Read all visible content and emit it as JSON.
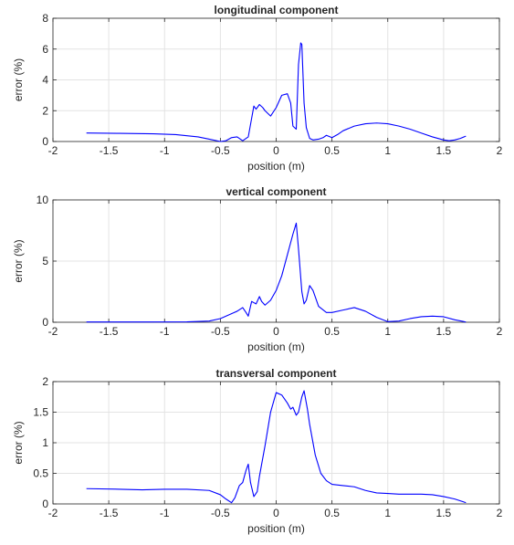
{
  "chart_data": [
    {
      "type": "line",
      "title": "longitudinal component",
      "xlabel": "position (m)",
      "ylabel": "error (%)",
      "xlim": [
        -2,
        2
      ],
      "ylim": [
        0,
        8
      ],
      "xticks": [
        -2,
        -1.5,
        -1,
        -0.5,
        0,
        0.5,
        1,
        1.5,
        2
      ],
      "xtick_labels": [
        "-2",
        "-1.5",
        "-1",
        "-0.5",
        "0",
        "0.5",
        "1",
        "1.5",
        "2"
      ],
      "yticks": [
        0,
        2,
        4,
        6,
        8
      ],
      "ytick_labels": [
        "0",
        "2",
        "4",
        "6",
        "8"
      ],
      "grid": true,
      "color": "#0000ff",
      "x": [
        -1.7,
        -1.4,
        -1.1,
        -0.9,
        -0.7,
        -0.6,
        -0.5,
        -0.45,
        -0.4,
        -0.35,
        -0.3,
        -0.25,
        -0.22,
        -0.2,
        -0.18,
        -0.15,
        -0.12,
        -0.1,
        -0.05,
        0,
        0.05,
        0.1,
        0.13,
        0.15,
        0.18,
        0.2,
        0.22,
        0.23,
        0.25,
        0.27,
        0.3,
        0.33,
        0.38,
        0.42,
        0.45,
        0.5,
        0.55,
        0.6,
        0.7,
        0.8,
        0.9,
        1.0,
        1.1,
        1.2,
        1.3,
        1.4,
        1.5,
        1.55,
        1.6,
        1.65,
        1.7
      ],
      "y": [
        0.55,
        0.53,
        0.5,
        0.45,
        0.3,
        0.15,
        0.0,
        0.05,
        0.25,
        0.3,
        0.05,
        0.3,
        1.5,
        2.3,
        2.1,
        2.4,
        2.2,
        2.0,
        1.65,
        2.2,
        3.0,
        3.1,
        2.5,
        1.0,
        0.8,
        5.0,
        6.4,
        6.3,
        2.5,
        0.9,
        0.2,
        0.1,
        0.15,
        0.25,
        0.4,
        0.25,
        0.45,
        0.7,
        1.0,
        1.15,
        1.2,
        1.15,
        1.0,
        0.8,
        0.55,
        0.3,
        0.1,
        0.05,
        0.1,
        0.2,
        0.35
      ]
    },
    {
      "type": "line",
      "title": "vertical component",
      "xlabel": "position (m)",
      "ylabel": "error (%)",
      "xlim": [
        -2,
        2
      ],
      "ylim": [
        0,
        10
      ],
      "xticks": [
        -2,
        -1.5,
        -1,
        -0.5,
        0,
        0.5,
        1,
        1.5,
        2
      ],
      "xtick_labels": [
        "-2",
        "-1.5",
        "-1",
        "-0.5",
        "0",
        "0.5",
        "1",
        "1.5",
        "2"
      ],
      "yticks": [
        0,
        5,
        10
      ],
      "ytick_labels": [
        "0",
        "5",
        "10"
      ],
      "grid": true,
      "color": "#0000ff",
      "x": [
        -1.7,
        -1.2,
        -0.8,
        -0.6,
        -0.5,
        -0.4,
        -0.35,
        -0.3,
        -0.27,
        -0.25,
        -0.22,
        -0.2,
        -0.18,
        -0.15,
        -0.13,
        -0.1,
        -0.05,
        0,
        0.05,
        0.1,
        0.15,
        0.18,
        0.2,
        0.23,
        0.25,
        0.27,
        0.3,
        0.33,
        0.38,
        0.45,
        0.5,
        0.6,
        0.7,
        0.8,
        0.9,
        1.0,
        1.1,
        1.2,
        1.3,
        1.4,
        1.5,
        1.6,
        1.7
      ],
      "y": [
        0.02,
        0.02,
        0.03,
        0.1,
        0.3,
        0.7,
        0.9,
        1.2,
        0.8,
        0.5,
        1.7,
        1.6,
        1.5,
        2.1,
        1.7,
        1.4,
        1.8,
        2.6,
        3.8,
        5.5,
        7.2,
        8.1,
        6.0,
        2.5,
        1.5,
        1.8,
        3.0,
        2.6,
        1.3,
        0.8,
        0.8,
        1.0,
        1.2,
        0.9,
        0.4,
        0.05,
        0.1,
        0.3,
        0.45,
        0.5,
        0.45,
        0.2,
        0.02
      ]
    },
    {
      "type": "line",
      "title": "transversal component",
      "xlabel": "position (m)",
      "ylabel": "error (%)",
      "xlim": [
        -2,
        2
      ],
      "ylim": [
        0,
        2
      ],
      "xticks": [
        -2,
        -1.5,
        -1,
        -0.5,
        0,
        0.5,
        1,
        1.5,
        2
      ],
      "xtick_labels": [
        "-2",
        "-1.5",
        "-1",
        "-0.5",
        "0",
        "0.5",
        "1",
        "1.5",
        "2"
      ],
      "yticks": [
        0,
        0.5,
        1,
        1.5,
        2
      ],
      "ytick_labels": [
        "0",
        "0.5",
        "1",
        "1.5",
        "2"
      ],
      "grid": true,
      "color": "#0000ff",
      "x": [
        -1.7,
        -1.4,
        -1.2,
        -1.0,
        -0.8,
        -0.6,
        -0.5,
        -0.45,
        -0.4,
        -0.37,
        -0.33,
        -0.3,
        -0.27,
        -0.25,
        -0.23,
        -0.2,
        -0.17,
        -0.15,
        -0.1,
        -0.05,
        0,
        0.05,
        0.1,
        0.13,
        0.15,
        0.18,
        0.2,
        0.23,
        0.25,
        0.28,
        0.3,
        0.35,
        0.4,
        0.45,
        0.5,
        0.6,
        0.7,
        0.8,
        0.9,
        1.0,
        1.1,
        1.2,
        1.3,
        1.4,
        1.5,
        1.6,
        1.7
      ],
      "y": [
        0.25,
        0.24,
        0.23,
        0.24,
        0.24,
        0.22,
        0.15,
        0.08,
        0.02,
        0.1,
        0.3,
        0.35,
        0.55,
        0.65,
        0.35,
        0.12,
        0.2,
        0.45,
        0.95,
        1.5,
        1.82,
        1.78,
        1.65,
        1.55,
        1.58,
        1.45,
        1.5,
        1.75,
        1.85,
        1.55,
        1.3,
        0.8,
        0.5,
        0.38,
        0.32,
        0.3,
        0.28,
        0.22,
        0.18,
        0.17,
        0.16,
        0.16,
        0.16,
        0.15,
        0.12,
        0.08,
        0.02
      ]
    }
  ]
}
